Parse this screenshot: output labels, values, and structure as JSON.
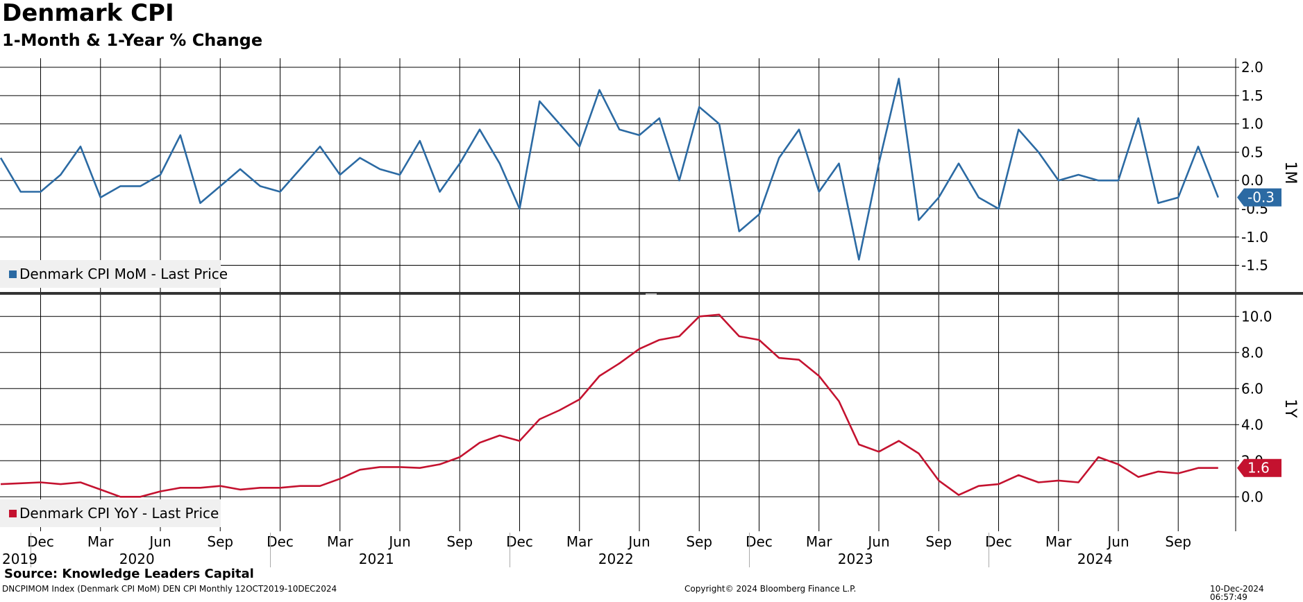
{
  "header": {
    "title": "Denmark CPI",
    "subtitle": "1-Month & 1-Year % Change"
  },
  "footer": {
    "source": "Source: Knowledge Leaders Capital",
    "ticker_info": "DNCPIMOM Index (Denmark CPI MoM) DEN CPI  Monthly 12OCT2019-10DEC2024",
    "copyright": "Copyright© 2024 Bloomberg Finance L.P.",
    "timestamp": "10-Dec-2024 06:57:49"
  },
  "colors": {
    "mom": "#2b6aa3",
    "yoy": "#c4122f",
    "grid": "#000000"
  },
  "chart_data": {
    "type": "line",
    "x": [
      "2019-10",
      "2019-11",
      "2019-12",
      "2020-01",
      "2020-02",
      "2020-03",
      "2020-04",
      "2020-05",
      "2020-06",
      "2020-07",
      "2020-08",
      "2020-09",
      "2020-10",
      "2020-11",
      "2020-12",
      "2021-01",
      "2021-02",
      "2021-03",
      "2021-04",
      "2021-05",
      "2021-06",
      "2021-07",
      "2021-08",
      "2021-09",
      "2021-10",
      "2021-11",
      "2021-12",
      "2022-01",
      "2022-02",
      "2022-03",
      "2022-04",
      "2022-05",
      "2022-06",
      "2022-07",
      "2022-08",
      "2022-09",
      "2022-10",
      "2022-11",
      "2022-12",
      "2023-01",
      "2023-02",
      "2023-03",
      "2023-04",
      "2023-05",
      "2023-06",
      "2023-07",
      "2023-08",
      "2023-09",
      "2023-10",
      "2023-11",
      "2023-12",
      "2024-01",
      "2024-02",
      "2024-03",
      "2024-04",
      "2024-05",
      "2024-06",
      "2024-07",
      "2024-08",
      "2024-09",
      "2024-10",
      "2024-11"
    ],
    "panels": [
      {
        "id": "1M",
        "axis_label": "1M",
        "ylim": [
          -2.0,
          2.1
        ],
        "yticks": [
          "2.0",
          "1.5",
          "1.0",
          "0.5",
          "0.0",
          "-0.5",
          "-1.0",
          "-1.5"
        ],
        "ytick_values": [
          2.0,
          1.5,
          1.0,
          0.5,
          0.0,
          -0.5,
          -1.0,
          -1.5
        ],
        "last_value_label": "-0.3",
        "series": [
          {
            "name": "Denmark CPI MoM - Last Price",
            "color": "#2b6aa3",
            "values": [
              0.4,
              -0.2,
              -0.2,
              0.1,
              0.6,
              -0.3,
              -0.1,
              -0.1,
              0.1,
              0.8,
              -0.4,
              -0.1,
              0.2,
              -0.1,
              -0.2,
              0.2,
              0.6,
              0.1,
              0.4,
              0.2,
              0.1,
              0.7,
              -0.2,
              0.3,
              0.9,
              0.3,
              -0.5,
              1.4,
              1.0,
              0.6,
              1.6,
              0.9,
              0.8,
              1.1,
              0.0,
              1.3,
              1.0,
              -0.9,
              -0.6,
              0.4,
              0.9,
              -0.2,
              0.3,
              -1.4,
              0.3,
              1.8,
              -0.7,
              -0.3,
              0.3,
              -0.3,
              -0.5,
              0.9,
              0.5,
              0.0,
              0.1,
              0.0,
              0.0,
              1.1,
              -0.4,
              -0.3,
              0.6,
              -0.3
            ]
          }
        ]
      },
      {
        "id": "1Y",
        "axis_label": "1Y",
        "ylim": [
          -1.9,
          11.2
        ],
        "yticks": [
          "10.0",
          "8.0",
          "6.0",
          "4.0",
          "2.0",
          "0.0"
        ],
        "ytick_values": [
          10,
          8,
          6,
          4,
          2,
          0
        ],
        "last_value_label": "1.6",
        "series": [
          {
            "name": "Denmark CPI YoY - Last Price",
            "color": "#c4122f",
            "values": [
              0.7,
              0.75,
              0.8,
              0.7,
              0.8,
              0.4,
              0.0,
              0.0,
              0.3,
              0.5,
              0.5,
              0.6,
              0.4,
              0.5,
              0.5,
              0.6,
              0.6,
              1.0,
              1.5,
              1.65,
              1.65,
              1.6,
              1.8,
              2.2,
              3.0,
              3.4,
              3.1,
              4.3,
              4.8,
              5.4,
              6.7,
              7.4,
              8.2,
              8.7,
              8.9,
              10.0,
              10.1,
              8.9,
              8.7,
              7.7,
              7.6,
              6.7,
              5.3,
              2.9,
              2.5,
              3.1,
              2.4,
              0.9,
              0.1,
              0.6,
              0.7,
              1.2,
              0.8,
              0.9,
              0.8,
              2.2,
              1.8,
              1.1,
              1.4,
              1.3,
              1.6,
              1.6
            ]
          }
        ]
      }
    ],
    "x_month_ticks": [
      {
        "label": "Dec",
        "date": "2019-12"
      },
      {
        "label": "Mar",
        "date": "2020-03"
      },
      {
        "label": "Jun",
        "date": "2020-06"
      },
      {
        "label": "Sep",
        "date": "2020-09"
      },
      {
        "label": "Dec",
        "date": "2020-12"
      },
      {
        "label": "Mar",
        "date": "2021-03"
      },
      {
        "label": "Jun",
        "date": "2021-06"
      },
      {
        "label": "Sep",
        "date": "2021-09"
      },
      {
        "label": "Dec",
        "date": "2021-12"
      },
      {
        "label": "Mar",
        "date": "2022-03"
      },
      {
        "label": "Jun",
        "date": "2022-06"
      },
      {
        "label": "Sep",
        "date": "2022-09"
      },
      {
        "label": "Dec",
        "date": "2022-12"
      },
      {
        "label": "Mar",
        "date": "2023-03"
      },
      {
        "label": "Jun",
        "date": "2023-06"
      },
      {
        "label": "Sep",
        "date": "2023-09"
      },
      {
        "label": "Dec",
        "date": "2023-12"
      },
      {
        "label": "Mar",
        "date": "2024-03"
      },
      {
        "label": "Jun",
        "date": "2024-06"
      },
      {
        "label": "Sep",
        "date": "2024-09"
      }
    ],
    "x_year_ticks": [
      {
        "label": "2019",
        "date": "2019-10"
      },
      {
        "label": "2020",
        "date": "2020-05"
      },
      {
        "label": "2021",
        "date": "2021-05"
      },
      {
        "label": "2022",
        "date": "2022-05"
      },
      {
        "label": "2023",
        "date": "2023-05"
      },
      {
        "label": "2024",
        "date": "2024-05"
      }
    ],
    "x_year_boundaries": [
      "2019-12",
      "2020-12",
      "2021-12",
      "2022-12",
      "2023-12"
    ],
    "grid": true,
    "legend_position": "bottom-left"
  }
}
